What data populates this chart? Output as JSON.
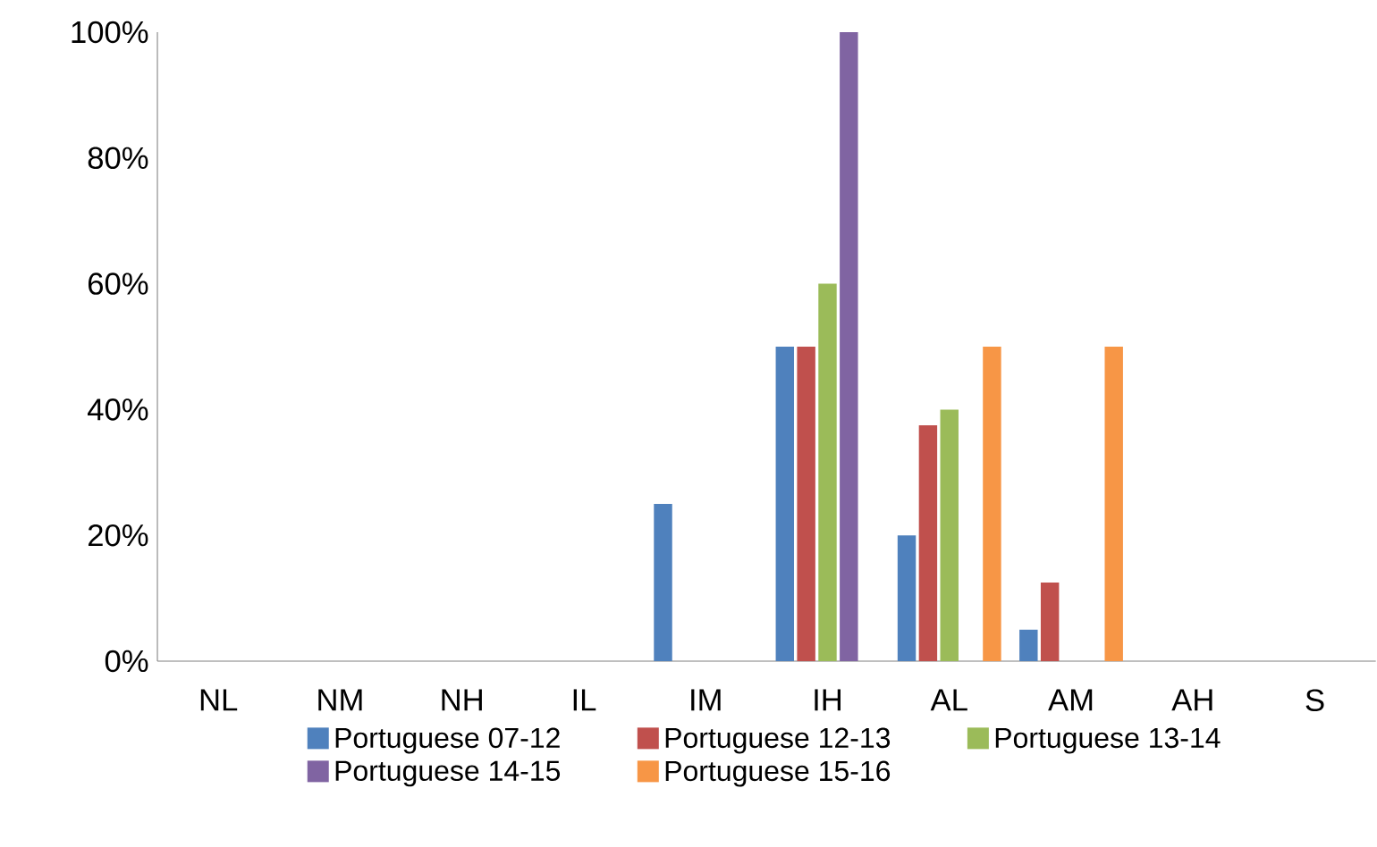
{
  "chart_data": {
    "type": "bar",
    "categories": [
      "NL",
      "NM",
      "NH",
      "IL",
      "IM",
      "IH",
      "AL",
      "AM",
      "AH",
      "S"
    ],
    "series": [
      {
        "name": "Portuguese 07-12",
        "color": "#4f81bd",
        "values": [
          0,
          0,
          0,
          0,
          25,
          50,
          20,
          5,
          0,
          0
        ]
      },
      {
        "name": "Portuguese 12-13",
        "color": "#c0504d",
        "values": [
          0,
          0,
          0,
          0,
          0,
          50,
          37.5,
          12.5,
          0,
          0
        ]
      },
      {
        "name": "Portuguese 13-14",
        "color": "#9bbb59",
        "values": [
          0,
          0,
          0,
          0,
          0,
          60,
          40,
          0,
          0,
          0
        ]
      },
      {
        "name": "Portuguese 14-15",
        "color": "#8064a2",
        "values": [
          0,
          0,
          0,
          0,
          0,
          100,
          0,
          0,
          0,
          0
        ]
      },
      {
        "name": "Portuguese 15-16",
        "color": "#f79646",
        "values": [
          0,
          0,
          0,
          0,
          0,
          0,
          50,
          50,
          0,
          0
        ]
      }
    ],
    "ylim": [
      0,
      100
    ],
    "yticks": [
      {
        "value": 0,
        "label": "0%"
      },
      {
        "value": 20,
        "label": "20%"
      },
      {
        "value": 40,
        "label": "40%"
      },
      {
        "value": 60,
        "label": "60%"
      },
      {
        "value": 80,
        "label": "80%"
      },
      {
        "value": 100,
        "label": "100%"
      }
    ],
    "grid": false,
    "legend": "bottom"
  }
}
